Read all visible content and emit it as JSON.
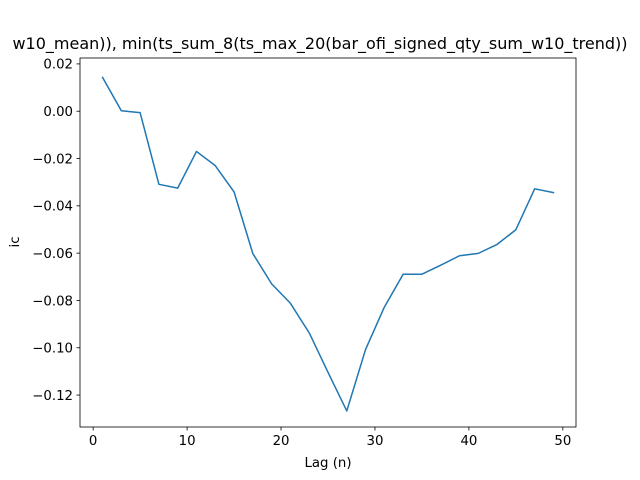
{
  "chart_data": {
    "type": "line",
    "title": "w10_mean)), min(ts_sum_8(ts_max_20(bar_ofi_signed_qty_sum_w10_trend))",
    "xlabel": "Lag (n)",
    "ylabel": "ic",
    "xlim": [
      -1.4,
      51.4
    ],
    "ylim": [
      -0.1335,
      0.0225
    ],
    "xticks": [
      0,
      10,
      20,
      30,
      40,
      50
    ],
    "xtick_labels": [
      "0",
      "10",
      "20",
      "30",
      "40",
      "50"
    ],
    "yticks": [
      0.02,
      0.0,
      -0.02,
      -0.04,
      -0.06,
      -0.08,
      -0.1,
      -0.12
    ],
    "ytick_labels": [
      "0.02",
      "0.00",
      "−0.02",
      "−0.04",
      "−0.06",
      "−0.08",
      "−0.10",
      "−0.12"
    ],
    "grid": false,
    "series": [
      {
        "color": "#1f77b4",
        "x": [
          1,
          3,
          5,
          7,
          9,
          11,
          13,
          15,
          17,
          19,
          21,
          23,
          25,
          27,
          29,
          31,
          33,
          35,
          37,
          39,
          41,
          43,
          45,
          47,
          49
        ],
        "y": [
          0.0143,
          0.0002,
          -0.0006,
          -0.0309,
          -0.0325,
          -0.017,
          -0.023,
          -0.0341,
          -0.0602,
          -0.073,
          -0.0812,
          -0.0937,
          -0.1104,
          -0.1267,
          -0.1007,
          -0.0828,
          -0.0689,
          -0.0689,
          -0.0651,
          -0.0611,
          -0.0601,
          -0.0563,
          -0.0501,
          -0.0328,
          -0.0344
        ]
      }
    ]
  }
}
